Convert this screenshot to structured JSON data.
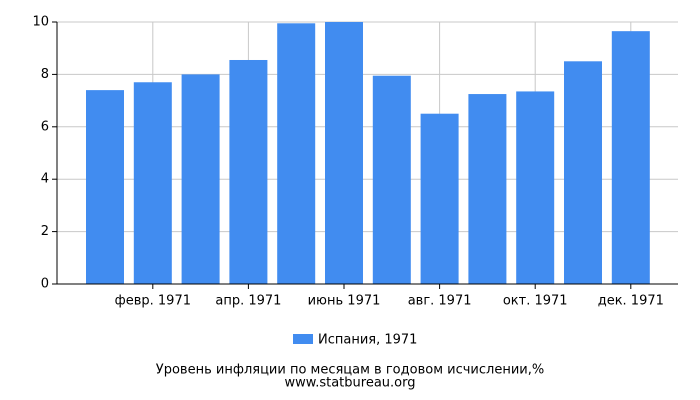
{
  "chart_data": {
    "type": "bar",
    "categories": [
      null,
      "февр. 1971",
      null,
      "апр. 1971",
      null,
      "июнь 1971",
      null,
      "авг. 1971",
      null,
      "окт. 1971",
      null,
      "дек. 1971"
    ],
    "series": [
      {
        "name": "Испания, 1971",
        "color": "#418cf0",
        "values": [
          7.4,
          7.7,
          8.0,
          8.55,
          9.95,
          10.0,
          7.95,
          6.5,
          7.25,
          7.35,
          8.5,
          9.65
        ]
      }
    ],
    "ylim": [
      0,
      10
    ],
    "yticks": [
      0,
      2,
      4,
      6,
      8,
      10
    ],
    "grid": true,
    "xlabel": "Уровень инфляции по месяцам в годовом исчислении,%",
    "source": "www.statbureau.org"
  }
}
